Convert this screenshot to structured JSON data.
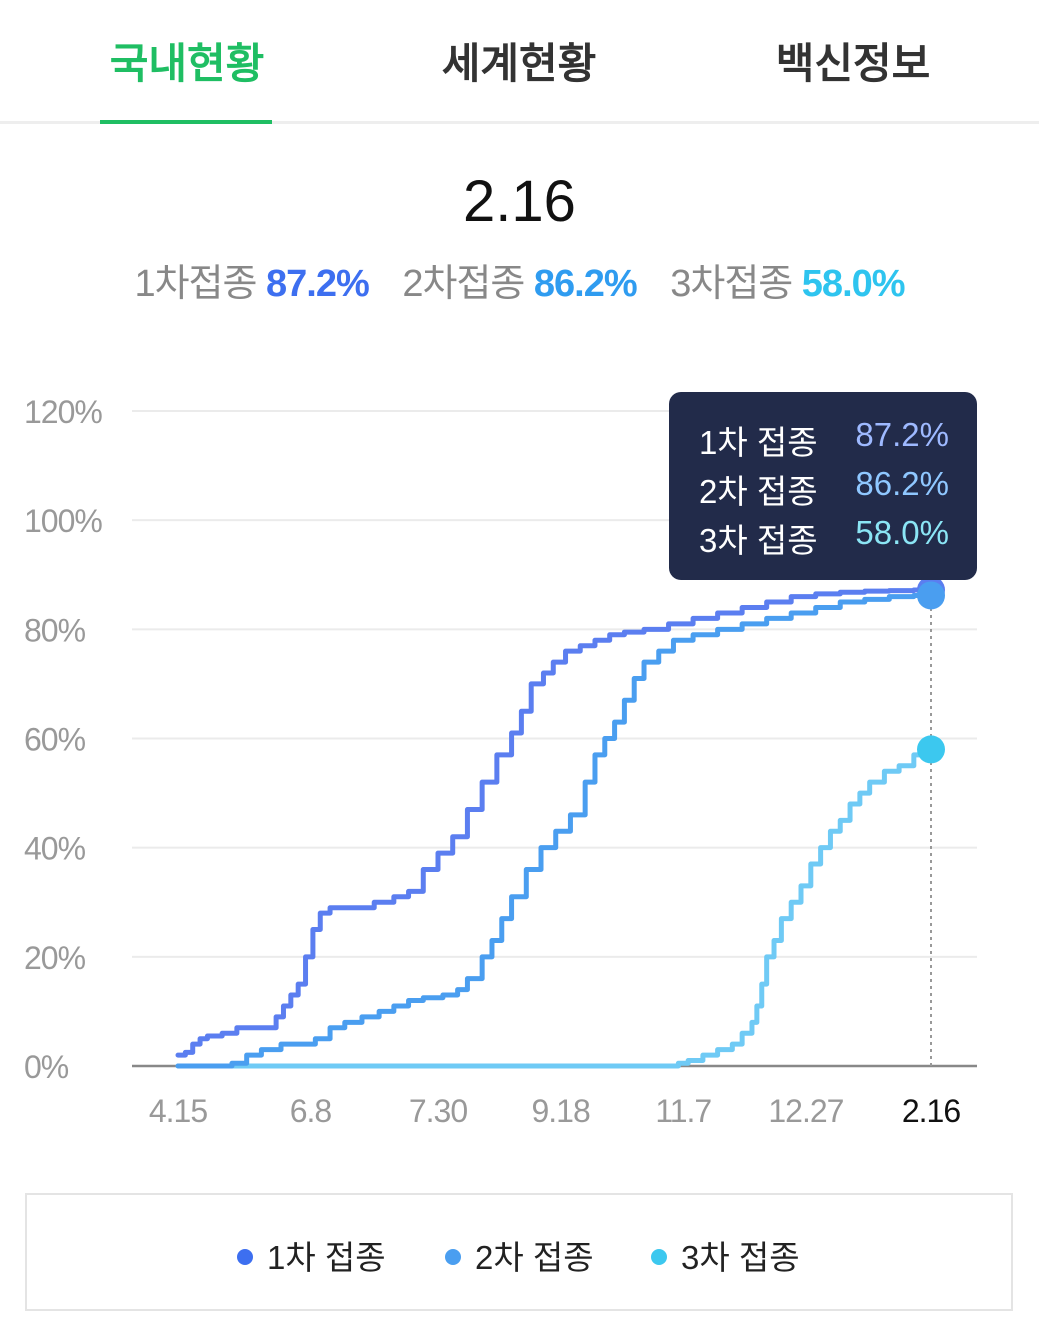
{
  "tabs": [
    {
      "label": "국내현황",
      "active": true
    },
    {
      "label": "세계현황",
      "active": false
    },
    {
      "label": "백신정보",
      "active": false
    }
  ],
  "summary": {
    "date": "2.16",
    "items": [
      {
        "label": "1차접종",
        "value": "87.2%"
      },
      {
        "label": "2차접종",
        "value": "86.2%"
      },
      {
        "label": "3차접종",
        "value": "58.0%"
      }
    ]
  },
  "colors": {
    "accent": "#1fbe63",
    "dose1": "#5b7ef0",
    "dose2": "#4a9ef0",
    "dose3": "#6fcaf5",
    "tooltip_bg": "#222b4a"
  },
  "tooltip": {
    "rows": [
      {
        "label": "1차 접종",
        "value": "87.2%"
      },
      {
        "label": "2차 접종",
        "value": "86.2%"
      },
      {
        "label": "3차 접종",
        "value": "58.0%"
      }
    ]
  },
  "legend": [
    {
      "label": "1차 접종",
      "color": "#3d6ff0"
    },
    {
      "label": "2차 접종",
      "color": "#4a9ef0"
    },
    {
      "label": "3차 접종",
      "color": "#3cc8ef"
    }
  ],
  "chart_data": {
    "type": "line",
    "ylim": [
      0,
      120
    ],
    "y_ticks": [
      0,
      20,
      40,
      60,
      80,
      100,
      120
    ],
    "y_tick_labels": [
      "0%",
      "20%",
      "40%",
      "60%",
      "80%",
      "100%",
      "120%"
    ],
    "x_tick_labels": [
      "4.15",
      "6.8",
      "7.30",
      "9.18",
      "11.7",
      "12.27",
      "2.16"
    ],
    "x_ticks": [
      0,
      54,
      106,
      156,
      206,
      256,
      307
    ],
    "xlim": [
      0,
      307
    ],
    "highlight_x": 307,
    "grid": true,
    "legend_position": "bottom",
    "series": [
      {
        "name": "1차 접종",
        "color": "#5b7ef0",
        "points": [
          [
            0,
            2
          ],
          [
            3,
            2.5
          ],
          [
            6,
            4
          ],
          [
            9,
            5
          ],
          [
            12,
            5.5
          ],
          [
            18,
            6
          ],
          [
            24,
            7
          ],
          [
            30,
            7
          ],
          [
            37,
            7
          ],
          [
            40,
            9
          ],
          [
            43,
            11
          ],
          [
            46,
            13
          ],
          [
            49,
            15
          ],
          [
            52,
            20
          ],
          [
            55,
            25
          ],
          [
            58,
            28
          ],
          [
            62,
            29
          ],
          [
            68,
            29
          ],
          [
            75,
            29
          ],
          [
            80,
            30
          ],
          [
            88,
            31
          ],
          [
            94,
            32
          ],
          [
            100,
            36
          ],
          [
            106,
            39
          ],
          [
            112,
            42
          ],
          [
            118,
            47
          ],
          [
            124,
            52
          ],
          [
            130,
            57
          ],
          [
            136,
            61
          ],
          [
            140,
            65
          ],
          [
            144,
            70
          ],
          [
            149,
            72
          ],
          [
            153,
            74
          ],
          [
            158,
            76
          ],
          [
            164,
            77
          ],
          [
            170,
            78
          ],
          [
            176,
            79
          ],
          [
            182,
            79.5
          ],
          [
            190,
            80
          ],
          [
            200,
            81
          ],
          [
            210,
            82
          ],
          [
            220,
            83
          ],
          [
            230,
            84
          ],
          [
            240,
            85
          ],
          [
            250,
            86
          ],
          [
            260,
            86.5
          ],
          [
            270,
            86.8
          ],
          [
            280,
            87
          ],
          [
            290,
            87.1
          ],
          [
            300,
            87.2
          ],
          [
            307,
            87.2
          ]
        ]
      },
      {
        "name": "2차 접종",
        "color": "#4a9ef0",
        "points": [
          [
            0,
            0
          ],
          [
            15,
            0
          ],
          [
            22,
            0.5
          ],
          [
            28,
            2
          ],
          [
            34,
            3
          ],
          [
            42,
            4
          ],
          [
            52,
            4
          ],
          [
            56,
            5
          ],
          [
            62,
            7
          ],
          [
            68,
            8
          ],
          [
            75,
            9
          ],
          [
            82,
            10
          ],
          [
            88,
            11
          ],
          [
            94,
            12
          ],
          [
            100,
            12.5
          ],
          [
            108,
            13
          ],
          [
            114,
            14
          ],
          [
            118,
            16
          ],
          [
            124,
            20
          ],
          [
            128,
            23
          ],
          [
            132,
            27
          ],
          [
            136,
            31
          ],
          [
            142,
            36
          ],
          [
            148,
            40
          ],
          [
            154,
            43
          ],
          [
            160,
            46
          ],
          [
            166,
            52
          ],
          [
            170,
            57
          ],
          [
            174,
            60
          ],
          [
            178,
            63
          ],
          [
            182,
            67
          ],
          [
            186,
            71
          ],
          [
            190,
            74
          ],
          [
            196,
            76
          ],
          [
            202,
            78
          ],
          [
            210,
            79
          ],
          [
            220,
            80
          ],
          [
            230,
            81
          ],
          [
            240,
            82
          ],
          [
            250,
            83
          ],
          [
            260,
            84
          ],
          [
            270,
            85
          ],
          [
            280,
            85.5
          ],
          [
            290,
            86
          ],
          [
            300,
            86.2
          ],
          [
            307,
            86.2
          ]
        ]
      },
      {
        "name": "3차 접종",
        "color": "#6fcaf5",
        "points": [
          [
            0,
            0
          ],
          [
            200,
            0
          ],
          [
            204,
            0.5
          ],
          [
            208,
            1
          ],
          [
            214,
            2
          ],
          [
            220,
            3
          ],
          [
            226,
            4
          ],
          [
            230,
            6
          ],
          [
            234,
            8
          ],
          [
            236,
            11
          ],
          [
            238,
            15
          ],
          [
            240,
            20
          ],
          [
            243,
            23
          ],
          [
            246,
            27
          ],
          [
            250,
            30
          ],
          [
            254,
            33
          ],
          [
            258,
            37
          ],
          [
            262,
            40
          ],
          [
            266,
            43
          ],
          [
            270,
            45
          ],
          [
            274,
            48
          ],
          [
            278,
            50
          ],
          [
            282,
            52
          ],
          [
            288,
            54
          ],
          [
            294,
            55
          ],
          [
            300,
            57
          ],
          [
            307,
            58
          ]
        ]
      }
    ]
  }
}
